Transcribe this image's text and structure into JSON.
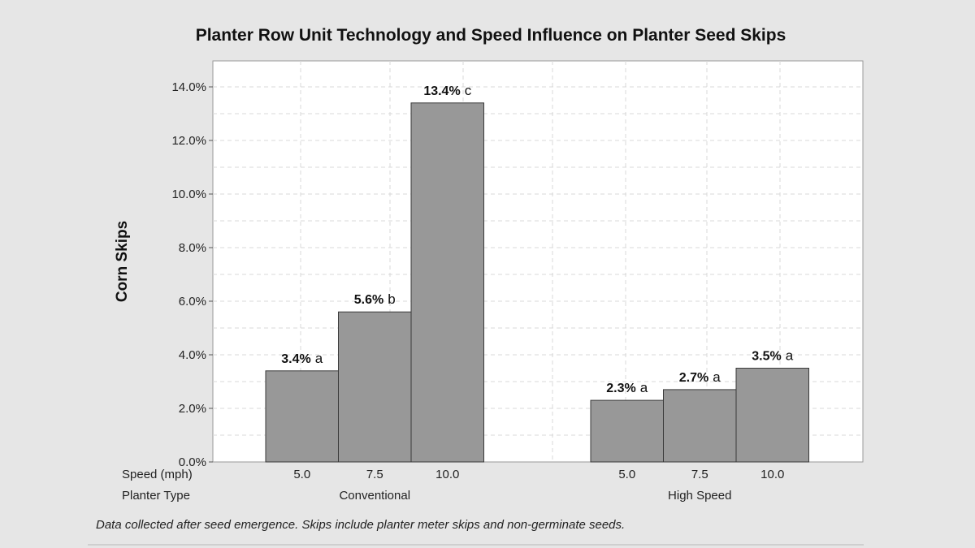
{
  "chart_data": {
    "type": "bar",
    "title": "Planter Row Unit Technology and Speed Influence on Planter Seed Skips",
    "ylabel": "Corn Skips",
    "ylim": [
      0,
      15
    ],
    "yticks": [
      "0.0%",
      "2.0%",
      "4.0%",
      "6.0%",
      "8.0%",
      "10.0%",
      "12.0%",
      "14.0%"
    ],
    "ytick_values": [
      0,
      2,
      4,
      6,
      8,
      10,
      12,
      14
    ],
    "grid": true,
    "row_labels": {
      "speed": "Speed (mph)",
      "planter_type": "Planter Type"
    },
    "groups": [
      {
        "name": "Conventional",
        "bars": [
          {
            "speed": "5.0",
            "value": 3.4,
            "value_label": "3.4%",
            "letter": "a"
          },
          {
            "speed": "7.5",
            "value": 5.6,
            "value_label": "5.6%",
            "letter": "b"
          },
          {
            "speed": "10.0",
            "value": 13.4,
            "value_label": "13.4%",
            "letter": "c"
          }
        ]
      },
      {
        "name": "High Speed",
        "bars": [
          {
            "speed": "5.0",
            "value": 2.3,
            "value_label": "2.3%",
            "letter": "a"
          },
          {
            "speed": "7.5",
            "value": 2.7,
            "value_label": "2.7%",
            "letter": "a"
          },
          {
            "speed": "10.0",
            "value": 3.5,
            "value_label": "3.5%",
            "letter": "a"
          }
        ]
      }
    ],
    "colors": {
      "bar": "#989898",
      "bar_edge": "#3a3a3a",
      "plot_bg": "#ffffff",
      "grid": "#d9d9d9"
    }
  },
  "footnote": "Data collected after seed emergence.  Skips include planter meter skips and non-germinate seeds."
}
